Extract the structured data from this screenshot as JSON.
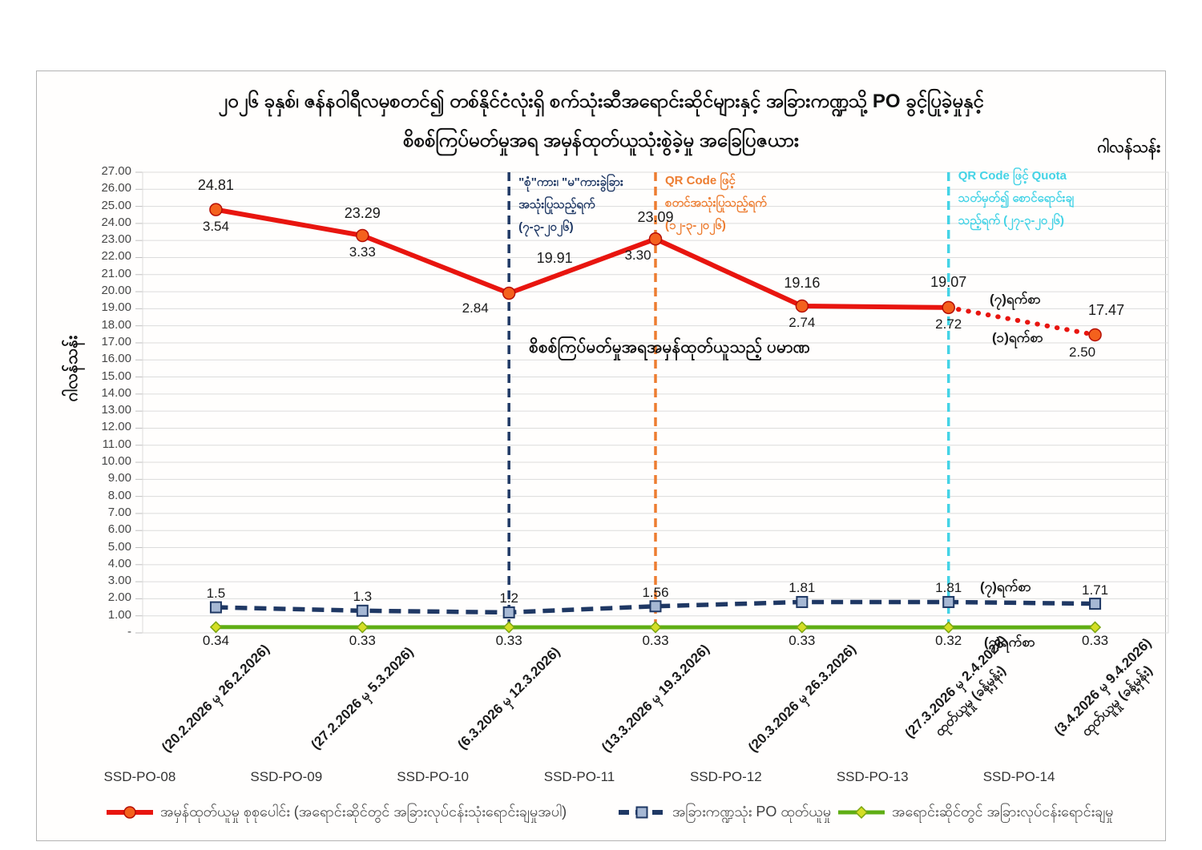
{
  "header": {
    "title_line1": "၂၀၂၆ ခုနှစ်၊ ဇန်နဝါရီလမှစတင်၍ တစ်နိုင်ငံလုံးရှိ စက်သုံးဆီအရောင်းဆိုင်များနှင့် အခြားကဏ္ဍသို့ PO ခွင့်ပြုခဲ့မှုနှင့်",
    "title_line2": "စိစစ်ကြပ်မတ်မှုအရ အမှန်ထုတ်ယူသုံးစွဲခဲ့မှု အခြေပြဇယား",
    "unit_right": "ဂါလန်သန်း"
  },
  "y_axis": {
    "label": "ဂါလန်သန်း",
    "min": 0,
    "max": 27,
    "step": 1,
    "zero_tick": "-"
  },
  "chart_data": {
    "type": "line",
    "grid": true,
    "ylim": [
      0,
      27
    ],
    "x_categories": [
      "SSD-PO-08",
      "SSD-PO-09",
      "SSD-PO-10",
      "SSD-PO-11",
      "SSD-PO-12",
      "SSD-PO-13",
      "SSD-PO-14"
    ],
    "x_date_labels": [
      "(20.2.2026 မှ 26.2.2026)",
      "(27.2.2026 မှ 5.3.2026)",
      "(6.3.2026 မှ 12.3.2026)",
      "(13.3.2026 မှ 19.3.2026)",
      "(20.3.2026 မှ 26.3.2026)",
      "(27.3.2026 မှ 2.4.2026)",
      "(3.4.2026 မှ 9.4.2026)"
    ],
    "x_sub_labels": [
      "",
      "",
      "",
      "",
      "",
      "ထုတ်ယူမှု (ခန့်မှန်း)",
      "ထုတ်ယူမှု (ခန့်မှန်း)"
    ],
    "series": [
      {
        "name": "အမှန်ထုတ်ယူမှု စုစုပေါင်း (အရောင်းဆိုင်တွင် အခြားလုပ်ငန်းသုံးရောင်းချမှုအပါ)",
        "color": "#e8150f",
        "style": "solid",
        "last_segment": "dotted",
        "marker": "circle",
        "marker_fill": "#f4611d",
        "marker_stroke": "#b50e05",
        "values": [
          24.81,
          23.29,
          19.91,
          23.09,
          19.16,
          19.07,
          17.47
        ],
        "labels": [
          "24.81",
          "23.29",
          "19.91",
          "23.09",
          "19.16",
          "19.07",
          "17.47"
        ],
        "sub_labels": [
          "3.54",
          "3.33",
          "2.84",
          "3.30",
          "2.74",
          "2.72",
          "2.50"
        ]
      },
      {
        "name": "အခြားကဏ္ဍသုံး PO ထုတ်ယူမှု",
        "color": "#1f3864",
        "style": "dashed",
        "marker": "square",
        "marker_fill": "#a6b8d4",
        "marker_stroke": "#1f3864",
        "values": [
          1.5,
          1.3,
          1.2,
          1.56,
          1.81,
          1.81,
          1.71
        ],
        "labels": [
          "1.5",
          "1.3",
          "1.2",
          "1.56",
          "1.81",
          "1.81",
          "1.71"
        ]
      },
      {
        "name": "အရောင်းဆိုင်တွင် အခြားလုပ်ငန်းရောင်းချမှု",
        "color": "#5fae14",
        "style": "solid",
        "marker": "diamond",
        "marker_fill": "#d4de25",
        "marker_stroke": "#79a410",
        "values": [
          0.34,
          0.33,
          0.33,
          0.33,
          0.33,
          0.32,
          0.33
        ],
        "labels": [
          "0.34",
          "0.33",
          "0.33",
          "0.33",
          "0.33",
          "0.32",
          "0.33"
        ]
      }
    ],
    "vlines": [
      {
        "at_category": 2,
        "color": "#1f3864",
        "lines": [
          "\"စုံ\"ကား၊ \"မ\"ကားခွဲခြား",
          "အသုံးပြုသည့်ရက်",
          "(၇-၃-၂၀၂၆)"
        ]
      },
      {
        "at_category": 3,
        "color": "#ed7d31",
        "lines": [
          "QR Code ဖြင့်",
          "စတင်အသုံးပြုသည့်ရက်",
          "(၁၂-၃-၂၀၂၆)"
        ]
      },
      {
        "at_category": 5,
        "color": "#44d3e6",
        "lines": [
          "QR Code ဖြင့် Quota",
          "သတ်မှတ်၍ စောင်ရောင်းချ",
          "သည့်ရက် (၂၇-၃-၂၀၂၆)"
        ]
      }
    ],
    "annotations": {
      "center_note": "စိစစ်ကြပ်မတ်မှုအရအမှန်ထုတ်ယူသည့် ပမာဏ",
      "red_dotted_top": "(၇)ရက်စာ",
      "red_dotted_bottom": "(၁)ရက်စာ",
      "po_line_right": "(၇)ရက်စာ",
      "green_line_right": "(၇)ရက်စာ"
    }
  },
  "legend": {
    "items": [
      {
        "label": "အမှန်ထုတ်ယူမှု စုစုပေါင်း (အရောင်းဆိုင်တွင် အခြားလုပ်ငန်းသုံးရောင်းချမှုအပါ)"
      },
      {
        "label": "အခြားကဏ္ဍသုံး PO ထုတ်ယူမှု"
      },
      {
        "label": "အရောင်းဆိုင်တွင် အခြားလုပ်ငန်းရောင်းချမှု"
      }
    ]
  },
  "colors": {
    "grid": "#dcdcdc",
    "tick_mark": "#bfbfbf",
    "card_border": "#b3b3b3"
  }
}
